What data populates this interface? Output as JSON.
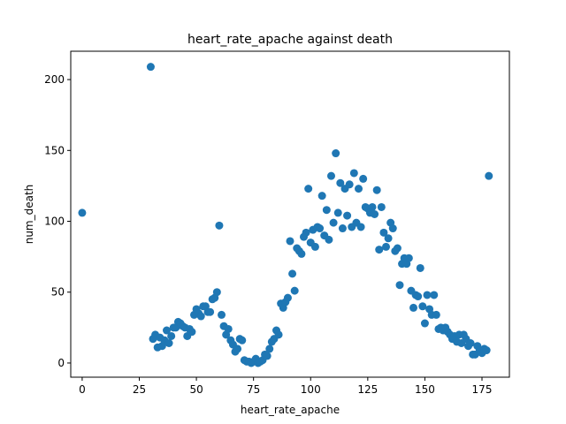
{
  "chart_data": {
    "type": "scatter",
    "title": "heart_rate_apache against death",
    "xlabel": "heart_rate_apache",
    "ylabel": "num_death",
    "xlim": [
      -5,
      187
    ],
    "ylim": [
      -10,
      220
    ],
    "xticks": [
      0,
      25,
      50,
      75,
      100,
      125,
      150,
      175
    ],
    "yticks": [
      0,
      50,
      100,
      150,
      200
    ],
    "grid": false,
    "marker_color": "#1f77b4",
    "series": [
      {
        "points": [
          [
            0,
            106
          ],
          [
            30,
            209
          ],
          [
            31,
            17
          ],
          [
            32,
            20
          ],
          [
            33,
            11
          ],
          [
            34,
            18
          ],
          [
            35,
            12
          ],
          [
            36,
            16
          ],
          [
            37,
            23
          ],
          [
            38,
            14
          ],
          [
            39,
            19
          ],
          [
            40,
            25
          ],
          [
            41,
            25
          ],
          [
            42,
            29
          ],
          [
            43,
            28
          ],
          [
            44,
            26
          ],
          [
            45,
            25
          ],
          [
            46,
            19
          ],
          [
            47,
            24
          ],
          [
            48,
            22
          ],
          [
            49,
            34
          ],
          [
            50,
            38
          ],
          [
            51,
            35
          ],
          [
            52,
            33
          ],
          [
            53,
            40
          ],
          [
            54,
            40
          ],
          [
            55,
            36
          ],
          [
            56,
            36
          ],
          [
            57,
            45
          ],
          [
            58,
            46
          ],
          [
            59,
            50
          ],
          [
            60,
            97
          ],
          [
            61,
            34
          ],
          [
            62,
            26
          ],
          [
            63,
            20
          ],
          [
            64,
            24
          ],
          [
            65,
            16
          ],
          [
            66,
            13
          ],
          [
            67,
            8
          ],
          [
            68,
            10
          ],
          [
            69,
            17
          ],
          [
            70,
            16
          ],
          [
            71,
            2
          ],
          [
            72,
            1
          ],
          [
            73,
            1
          ],
          [
            74,
            0
          ],
          [
            75,
            1
          ],
          [
            76,
            3
          ],
          [
            77,
            0
          ],
          [
            78,
            1
          ],
          [
            79,
            2
          ],
          [
            80,
            6
          ],
          [
            81,
            5
          ],
          [
            82,
            10
          ],
          [
            83,
            15
          ],
          [
            84,
            17
          ],
          [
            85,
            23
          ],
          [
            86,
            20
          ],
          [
            87,
            42
          ],
          [
            88,
            39
          ],
          [
            89,
            43
          ],
          [
            90,
            46
          ],
          [
            91,
            86
          ],
          [
            92,
            63
          ],
          [
            93,
            51
          ],
          [
            94,
            81
          ],
          [
            95,
            79
          ],
          [
            96,
            77
          ],
          [
            97,
            89
          ],
          [
            98,
            92
          ],
          [
            99,
            123
          ],
          [
            100,
            85
          ],
          [
            101,
            94
          ],
          [
            102,
            82
          ],
          [
            103,
            96
          ],
          [
            104,
            95
          ],
          [
            105,
            118
          ],
          [
            106,
            90
          ],
          [
            107,
            108
          ],
          [
            108,
            87
          ],
          [
            109,
            132
          ],
          [
            110,
            99
          ],
          [
            111,
            148
          ],
          [
            112,
            106
          ],
          [
            113,
            127
          ],
          [
            114,
            95
          ],
          [
            115,
            123
          ],
          [
            116,
            104
          ],
          [
            117,
            126
          ],
          [
            118,
            96
          ],
          [
            119,
            134
          ],
          [
            120,
            99
          ],
          [
            121,
            123
          ],
          [
            122,
            96
          ],
          [
            123,
            130
          ],
          [
            124,
            110
          ],
          [
            125,
            109
          ],
          [
            126,
            106
          ],
          [
            127,
            110
          ],
          [
            128,
            105
          ],
          [
            129,
            122
          ],
          [
            130,
            80
          ],
          [
            131,
            110
          ],
          [
            132,
            92
          ],
          [
            133,
            82
          ],
          [
            134,
            88
          ],
          [
            135,
            99
          ],
          [
            136,
            95
          ],
          [
            137,
            79
          ],
          [
            138,
            81
          ],
          [
            139,
            55
          ],
          [
            140,
            70
          ],
          [
            141,
            74
          ],
          [
            142,
            70
          ],
          [
            143,
            74
          ],
          [
            144,
            51
          ],
          [
            145,
            39
          ],
          [
            146,
            48
          ],
          [
            147,
            47
          ],
          [
            148,
            67
          ],
          [
            149,
            40
          ],
          [
            150,
            28
          ],
          [
            151,
            48
          ],
          [
            152,
            38
          ],
          [
            153,
            34
          ],
          [
            154,
            48
          ],
          [
            155,
            34
          ],
          [
            156,
            24
          ],
          [
            157,
            25
          ],
          [
            158,
            23
          ],
          [
            159,
            25
          ],
          [
            160,
            22
          ],
          [
            161,
            20
          ],
          [
            162,
            17
          ],
          [
            163,
            19
          ],
          [
            164,
            15
          ],
          [
            165,
            20
          ],
          [
            166,
            14
          ],
          [
            167,
            20
          ],
          [
            168,
            17
          ],
          [
            169,
            12
          ],
          [
            170,
            14
          ],
          [
            171,
            6
          ],
          [
            172,
            6
          ],
          [
            173,
            12
          ],
          [
            174,
            9
          ],
          [
            175,
            7
          ],
          [
            176,
            10
          ],
          [
            177,
            9
          ],
          [
            178,
            132
          ]
        ]
      }
    ]
  }
}
